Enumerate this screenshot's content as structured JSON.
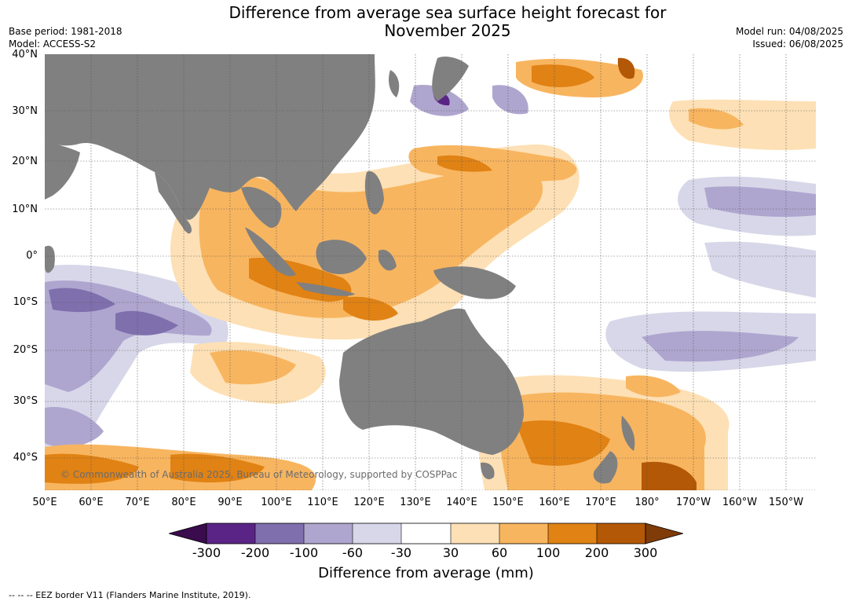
{
  "title_line1": "Difference from average sea surface height forecast for",
  "title_line2": "November 2025",
  "meta_left": [
    "Base period: 1981-2018",
    "Model: ACCESS-S2"
  ],
  "meta_right": [
    "Model run: 04/08/2025",
    "Issued: 06/08/2025"
  ],
  "lat_labels": [
    "40°N",
    "30°N",
    "20°N",
    "10°N",
    "0°",
    "10°S",
    "20°S",
    "30°S",
    "40°S"
  ],
  "lon_labels": [
    "50°E",
    "60°E",
    "70°E",
    "80°E",
    "90°E",
    "100°E",
    "110°E",
    "120°E",
    "130°E",
    "140°E",
    "150°E",
    "160°E",
    "170°E",
    "180°",
    "170°W",
    "160°W",
    "150°W"
  ],
  "copyright": "© Commonwealth of Australia 2025, Bureau of Meteorology, supported by COSPPac",
  "colorbar": {
    "ticks": [
      "-300",
      "-200",
      "-100",
      "-60",
      "-30",
      "30",
      "60",
      "100",
      "200",
      "300"
    ],
    "colors": [
      "#3a0b4d",
      "#5a2486",
      "#7f6fad",
      "#afa6cf",
      "#d7d7e9",
      "#ffffff",
      "#fde0b5",
      "#f8b55f",
      "#e08214",
      "#b35806",
      "#7f3b08"
    ],
    "label": "Difference from average (mm)"
  },
  "footnote": "--  --  -- EEZ border V11 (Flanders Marine Institute, 2019).",
  "colors": {
    "land": "#808080",
    "grid": "#555555"
  }
}
